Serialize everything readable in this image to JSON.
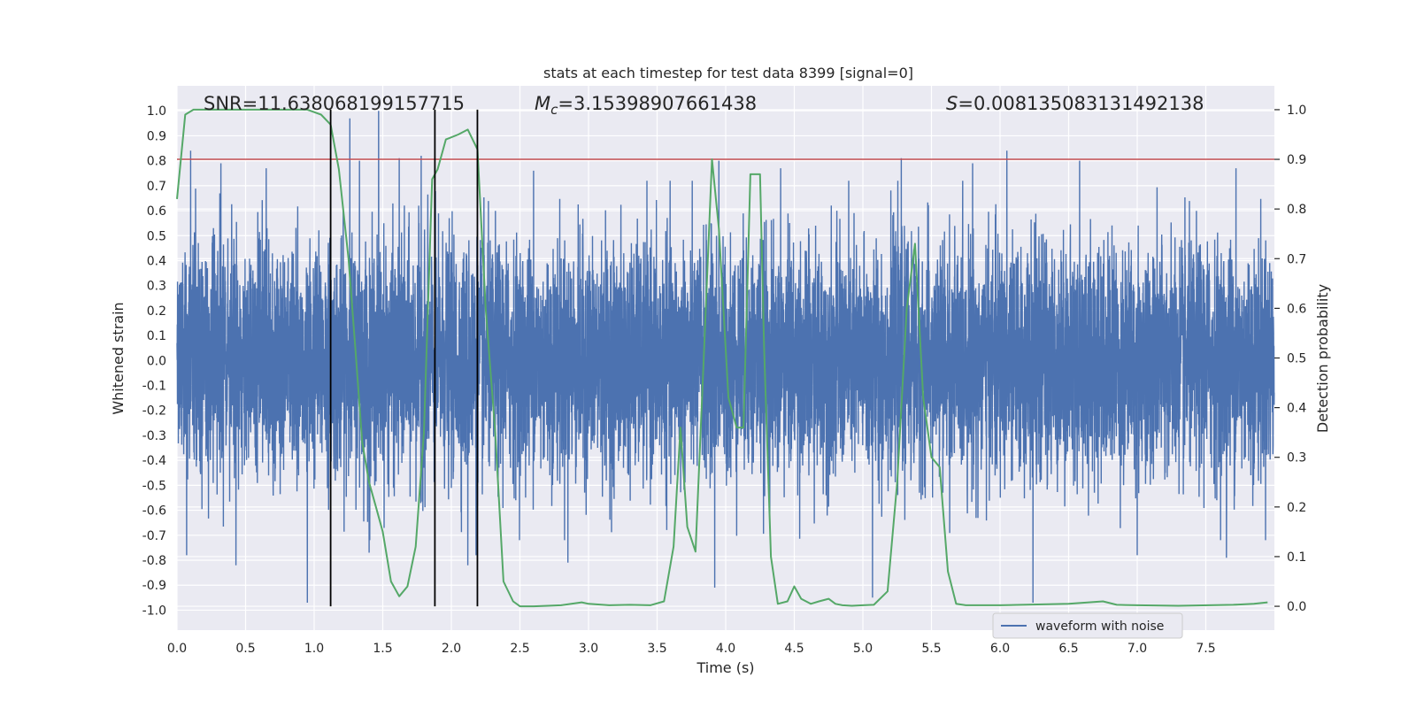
{
  "chart_data": {
    "type": "line",
    "title": "stats at each timestep for test data 8399 [signal=0]",
    "xlabel": "Time (s)",
    "ylabel": "Whitened strain",
    "y2label": "Detection probability",
    "xlim": [
      0.0,
      8.0
    ],
    "ylim": [
      -1.08,
      1.1
    ],
    "y2lim": [
      -0.048,
      1.048
    ],
    "x_ticks": [
      0.0,
      0.5,
      1.0,
      1.5,
      2.0,
      2.5,
      3.0,
      3.5,
      4.0,
      4.5,
      5.0,
      5.5,
      6.0,
      6.5,
      7.0,
      7.5
    ],
    "x_tick_labels": [
      "0.0",
      "0.5",
      "1.0",
      "1.5",
      "2.0",
      "2.5",
      "3.0",
      "3.5",
      "4.0",
      "4.5",
      "5.0",
      "5.5",
      "6.0",
      "6.5",
      "7.0",
      "7.5"
    ],
    "y_ticks": [
      -1.0,
      -0.9,
      -0.8,
      -0.7,
      -0.6,
      -0.5,
      -0.4,
      -0.3,
      -0.2,
      -0.1,
      0.0,
      0.1,
      0.2,
      0.3,
      0.4,
      0.5,
      0.6,
      0.7,
      0.8,
      0.9,
      1.0
    ],
    "y_tick_labels": [
      "-1.0",
      "-0.9",
      "-0.8",
      "-0.7",
      "-0.6",
      "-0.5",
      "-0.4",
      "-0.3",
      "-0.2",
      "-0.1",
      "0.0",
      "0.1",
      "0.2",
      "0.3",
      "0.4",
      "0.5",
      "0.6",
      "0.7",
      "0.8",
      "0.9",
      "1.0"
    ],
    "y2_ticks": [
      0.0,
      0.1,
      0.2,
      0.3,
      0.4,
      0.5,
      0.6,
      0.7,
      0.8,
      0.9,
      1.0
    ],
    "y2_tick_labels": [
      "0.0",
      "0.1",
      "0.2",
      "0.3",
      "0.4",
      "0.5",
      "0.6",
      "0.7",
      "0.8",
      "0.9",
      "1.0"
    ],
    "grid": true,
    "legend": {
      "placement": "lower-right",
      "entries": [
        "waveform with noise"
      ]
    },
    "annotations": {
      "snr": "SNR=11.638068199157715",
      "mc_symbol": "M",
      "mc_sub": "c",
      "mc_value": "=3.15398907661438",
      "s_symbol": "S",
      "s_value": "=0.008135083131492138"
    },
    "threshold": {
      "value": 0.9,
      "axis": "y2",
      "color": "#c44e52"
    },
    "vlines": [
      1.12,
      1.88,
      2.19
    ],
    "series": [
      {
        "name": "waveform with noise",
        "axis": "y",
        "color": "#4c72b0",
        "kind": "noise-waveform",
        "samples_per_second": 1024,
        "typical_envelope": [
          -0.48,
          0.48
        ],
        "peaks": [
          {
            "x": 0.1,
            "y": 0.84
          },
          {
            "x": 0.32,
            "y": 0.79
          },
          {
            "x": 0.65,
            "y": 0.77
          },
          {
            "x": 1.26,
            "y": 0.97
          },
          {
            "x": 1.33,
            "y": 0.8
          },
          {
            "x": 1.4,
            "y": 0.93
          },
          {
            "x": 1.47,
            "y": 1.0
          },
          {
            "x": 1.62,
            "y": 0.81
          },
          {
            "x": 1.78,
            "y": 0.82
          },
          {
            "x": 2.18,
            "y": 0.79
          },
          {
            "x": 2.6,
            "y": 0.76
          },
          {
            "x": 3.92,
            "y": 0.82
          },
          {
            "x": 3.95,
            "y": 0.8
          },
          {
            "x": 4.4,
            "y": 0.77
          },
          {
            "x": 5.28,
            "y": 0.81
          },
          {
            "x": 5.8,
            "y": 0.79
          },
          {
            "x": 6.05,
            "y": 0.84
          },
          {
            "x": 6.58,
            "y": 0.8
          },
          {
            "x": 7.0,
            "y": 0.8
          },
          {
            "x": 7.72,
            "y": 0.77
          },
          {
            "x": 0.07,
            "y": -0.78
          },
          {
            "x": 0.43,
            "y": -0.82
          },
          {
            "x": 0.95,
            "y": -0.97
          },
          {
            "x": 1.4,
            "y": -0.77
          },
          {
            "x": 2.12,
            "y": -0.82
          },
          {
            "x": 2.18,
            "y": -0.78
          },
          {
            "x": 2.85,
            "y": -0.81
          },
          {
            "x": 3.92,
            "y": -0.91
          },
          {
            "x": 5.07,
            "y": -0.95
          },
          {
            "x": 6.24,
            "y": -0.97
          },
          {
            "x": 7.0,
            "y": -0.78
          },
          {
            "x": 7.65,
            "y": -0.79
          }
        ]
      },
      {
        "name": "detection probability",
        "axis": "y2",
        "color": "#55a868",
        "x": [
          0.0,
          0.06,
          0.12,
          0.25,
          0.5,
          0.75,
          0.95,
          1.05,
          1.12,
          1.18,
          1.25,
          1.3,
          1.35,
          1.4,
          1.45,
          1.5,
          1.56,
          1.62,
          1.68,
          1.74,
          1.8,
          1.86,
          1.9,
          1.96,
          2.05,
          2.12,
          2.19,
          2.25,
          2.32,
          2.38,
          2.45,
          2.5,
          2.6,
          2.8,
          2.95,
          3.0,
          3.15,
          3.3,
          3.45,
          3.55,
          3.62,
          3.67,
          3.72,
          3.78,
          3.84,
          3.9,
          3.95,
          4.02,
          4.08,
          4.13,
          4.18,
          4.25,
          4.28,
          4.33,
          4.38,
          4.45,
          4.5,
          4.55,
          4.62,
          4.68,
          4.75,
          4.8,
          4.85,
          4.92,
          5.0,
          5.08,
          5.18,
          5.25,
          5.32,
          5.38,
          5.44,
          5.5,
          5.56,
          5.62,
          5.68,
          5.75,
          6.0,
          6.5,
          6.75,
          6.85,
          7.0,
          7.3,
          7.7,
          7.85,
          7.95
        ],
        "y": [
          0.82,
          0.99,
          1.0,
          1.0,
          1.0,
          1.0,
          1.0,
          0.99,
          0.97,
          0.88,
          0.7,
          0.52,
          0.33,
          0.25,
          0.2,
          0.15,
          0.05,
          0.02,
          0.04,
          0.12,
          0.35,
          0.86,
          0.88,
          0.94,
          0.95,
          0.96,
          0.92,
          0.6,
          0.35,
          0.05,
          0.01,
          0.0,
          0.0,
          0.002,
          0.008,
          0.005,
          0.002,
          0.003,
          0.002,
          0.01,
          0.12,
          0.36,
          0.16,
          0.11,
          0.5,
          0.9,
          0.76,
          0.42,
          0.36,
          0.36,
          0.87,
          0.87,
          0.52,
          0.1,
          0.005,
          0.01,
          0.04,
          0.015,
          0.005,
          0.01,
          0.015,
          0.005,
          0.002,
          0.001,
          0.002,
          0.003,
          0.03,
          0.25,
          0.6,
          0.73,
          0.42,
          0.3,
          0.28,
          0.07,
          0.005,
          0.002,
          0.002,
          0.005,
          0.01,
          0.003,
          0.002,
          0.001,
          0.003,
          0.005,
          0.008
        ]
      }
    ]
  }
}
